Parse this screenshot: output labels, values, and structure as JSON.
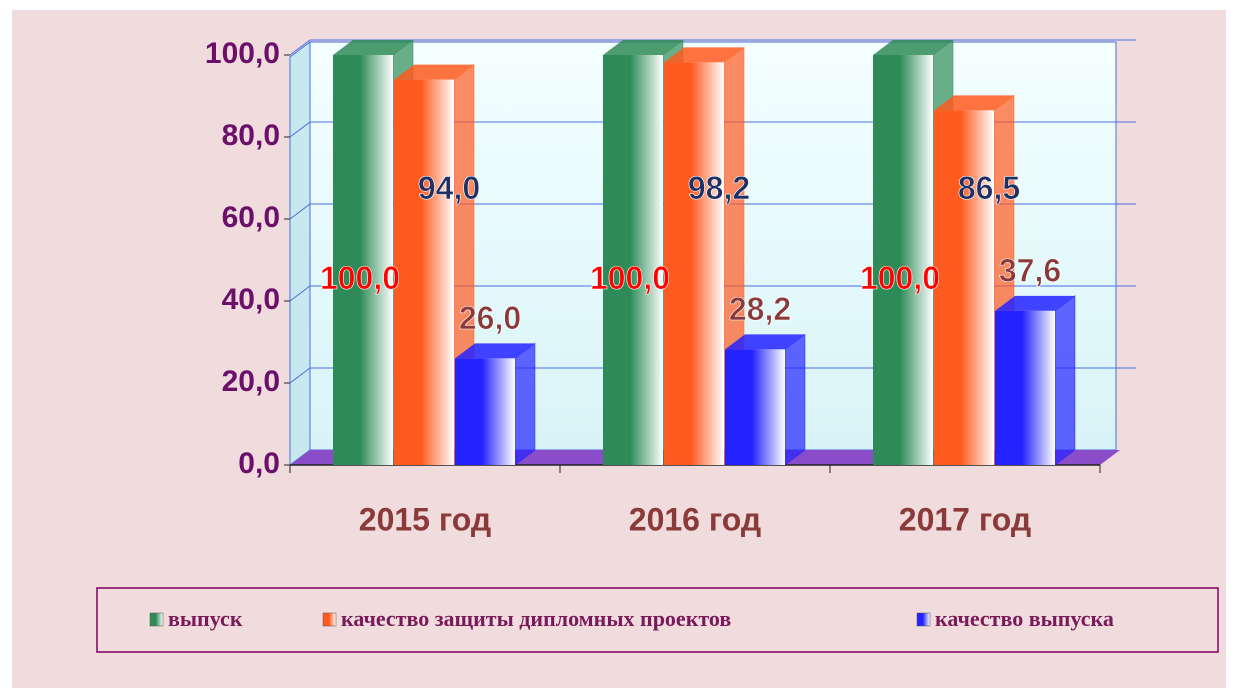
{
  "chart_data": {
    "type": "bar3d",
    "categories": [
      "2015 год",
      "2016 год",
      "2017 год"
    ],
    "series": [
      {
        "name": "выпуск",
        "color": "#2e8b57",
        "values": [
          100.0,
          100.0,
          100.0
        ],
        "value_labels": [
          "100,0",
          "100,0",
          "100,0"
        ],
        "label_color": "#ff0000"
      },
      {
        "name": "качество защиты дипломных проектов",
        "color": "#ff5a1f",
        "values": [
          94.0,
          98.2,
          86.5
        ],
        "value_labels": [
          "94,0",
          "98,2",
          "86,5"
        ],
        "label_color": "#1f3164"
      },
      {
        "name": "качество выпуска",
        "color": "#2323ff",
        "values": [
          26.0,
          28.2,
          37.6
        ],
        "value_labels": [
          "26,0",
          "28,2",
          "37,6"
        ],
        "label_color": "#8b3a3a"
      }
    ],
    "ylim": [
      0,
      100
    ],
    "yticks": [
      {
        "value": 0,
        "label": "0,0"
      },
      {
        "value": 20,
        "label": "20,0"
      },
      {
        "value": 40,
        "label": "40,0"
      },
      {
        "value": 60,
        "label": "60,0"
      },
      {
        "value": 80,
        "label": "80,0"
      },
      {
        "value": 100,
        "label": "100,0"
      }
    ],
    "grid": true
  }
}
